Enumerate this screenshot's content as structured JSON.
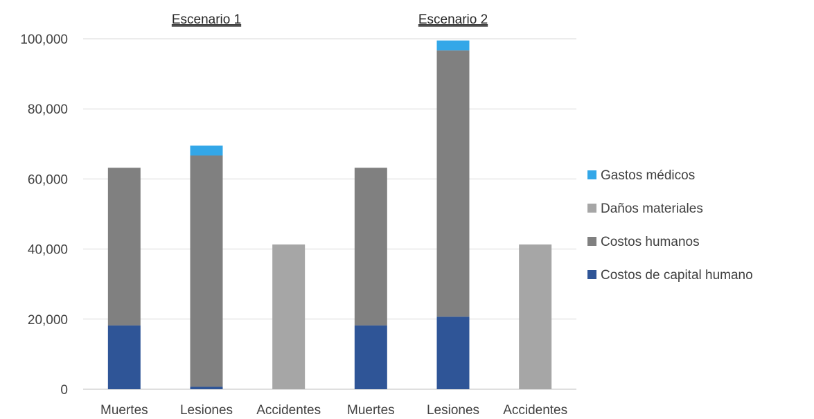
{
  "chart_data": {
    "type": "bar",
    "stacked": true,
    "title": "",
    "xlabel": "",
    "ylabel": "",
    "ylim": [
      0,
      100000
    ],
    "yticks": [
      0,
      20000,
      40000,
      60000,
      80000,
      100000
    ],
    "ytick_labels": [
      "0",
      "20,000",
      "40,000",
      "60,000",
      "80,000",
      "100,000"
    ],
    "grid": "horizontal",
    "legend_position": "right",
    "groups": [
      {
        "label": "Escenario 1",
        "categories": [
          0,
          1,
          2
        ]
      },
      {
        "label": "Escenario 2",
        "categories": [
          3,
          4,
          5
        ]
      }
    ],
    "categories": [
      "Muertes",
      "Lesiones",
      "Accidentes",
      "Muertes",
      "Lesiones",
      "Accidentes"
    ],
    "series": [
      {
        "name": "Costos de capital humano",
        "color": "#2F5597",
        "values": [
          18200,
          700,
          0,
          18200,
          20700,
          0
        ]
      },
      {
        "name": "Costos humanos",
        "color": "#808080",
        "values": [
          45000,
          66000,
          0,
          45000,
          76000,
          0
        ]
      },
      {
        "name": "Daños materiales",
        "color": "#A6A6A6",
        "values": [
          0,
          0,
          41300,
          0,
          0,
          41300
        ]
      },
      {
        "name": "Gastos médicos",
        "color": "#33A7E8",
        "values": [
          0,
          2800,
          0,
          0,
          2800,
          0
        ]
      }
    ],
    "legend_order": [
      3,
      2,
      1,
      0
    ]
  }
}
